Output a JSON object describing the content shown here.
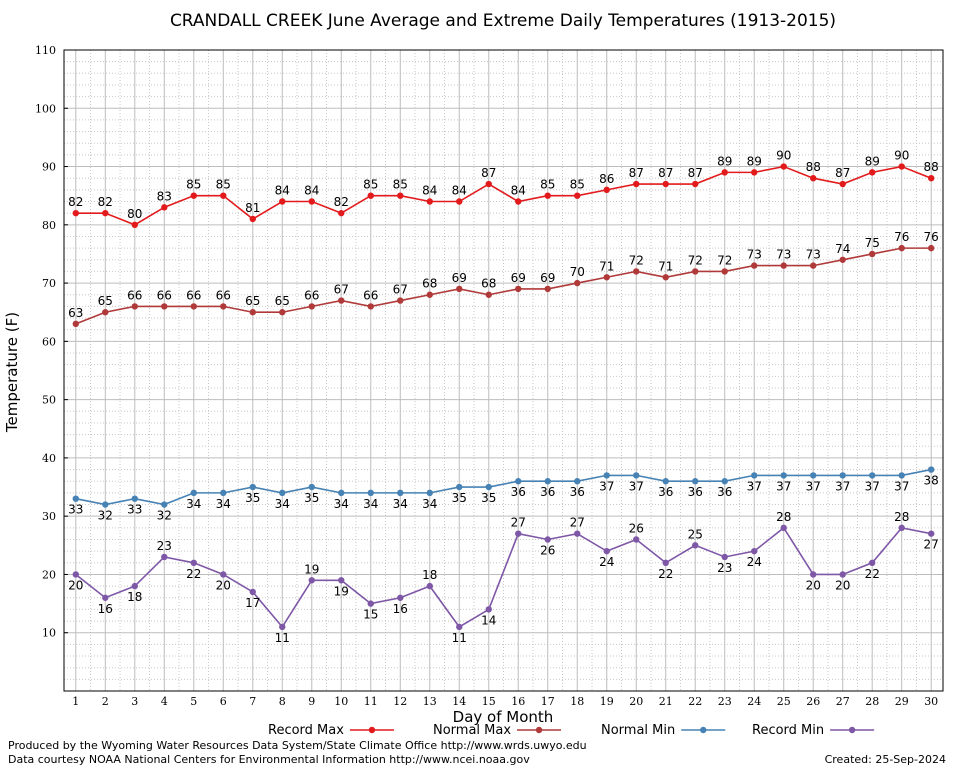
{
  "chart_data": {
    "type": "line",
    "title": "CRANDALL CREEK June Average and Extreme Daily Temperatures (1913-2015)",
    "xlabel": "Day of Month",
    "ylabel": "Temperature (F)",
    "xlim": [
      0.6,
      30.4
    ],
    "ylim": [
      0,
      110
    ],
    "yticks": [
      10,
      20,
      30,
      40,
      50,
      60,
      70,
      80,
      90,
      100,
      110
    ],
    "x": [
      1,
      2,
      3,
      4,
      5,
      6,
      7,
      8,
      9,
      10,
      11,
      12,
      13,
      14,
      15,
      16,
      17,
      18,
      19,
      20,
      21,
      22,
      23,
      24,
      25,
      26,
      27,
      28,
      29,
      30
    ],
    "grid": true,
    "legend_position": "bottom",
    "series": [
      {
        "name": "Record Max",
        "color": "#e31a1c",
        "values": [
          82,
          82,
          80,
          83,
          85,
          85,
          81,
          84,
          84,
          82,
          85,
          85,
          84,
          84,
          87,
          84,
          85,
          85,
          86,
          87,
          87,
          87,
          89,
          89,
          90,
          88,
          87,
          89,
          90,
          88
        ]
      },
      {
        "name": "Normal Max",
        "color": "#b03a3a",
        "values": [
          63,
          65,
          66,
          66,
          66,
          66,
          65,
          65,
          66,
          67,
          66,
          67,
          68,
          69,
          68,
          69,
          69,
          70,
          71,
          72,
          71,
          72,
          72,
          73,
          73,
          73,
          74,
          75,
          76,
          76
        ]
      },
      {
        "name": "Normal Min",
        "color": "#4682b4",
        "values": [
          33,
          32,
          33,
          32,
          34,
          34,
          35,
          34,
          35,
          34,
          34,
          34,
          34,
          35,
          35,
          36,
          36,
          36,
          37,
          37,
          36,
          36,
          36,
          37,
          37,
          37,
          37,
          37,
          37,
          38
        ]
      },
      {
        "name": "Record Min",
        "color": "#7e57a6",
        "values": [
          20,
          16,
          18,
          23,
          22,
          20,
          17,
          11,
          19,
          19,
          15,
          16,
          18,
          11,
          14,
          27,
          26,
          27,
          24,
          26,
          22,
          25,
          23,
          24,
          28,
          20,
          20,
          22,
          28,
          27
        ]
      }
    ]
  },
  "footer": {
    "produced_by": "Produced by the Wyoming Water Resources Data System/State Climate Office http://www.wrds.uwyo.edu",
    "courtesy": "Data courtesy NOAA National Centers for Environmental Information http://www.ncei.noaa.gov",
    "created": "Created:  25-Sep-2024"
  }
}
